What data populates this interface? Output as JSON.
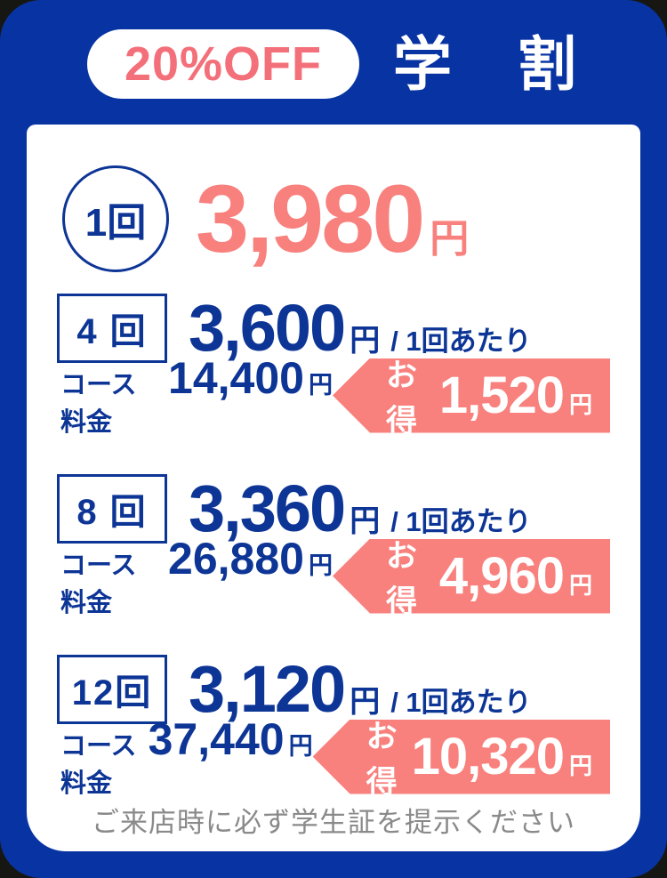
{
  "header": {
    "discount_badge": "20%OFF",
    "title": "学　割"
  },
  "single": {
    "count_label": "1回",
    "price": "3,980",
    "unit": "円"
  },
  "plans": [
    {
      "count_label": "4 回",
      "price": "3,600",
      "unit": "円",
      "per_label": "/ 1回あたり",
      "course_label": "コース料金",
      "course_price": "14,400",
      "course_unit": "円",
      "deal_label": "お得",
      "deal_price": "1,520",
      "deal_unit": "円"
    },
    {
      "count_label": "8 回",
      "price": "3,360",
      "unit": "円",
      "per_label": "/ 1回あたり",
      "course_label": "コース料金",
      "course_price": "26,880",
      "course_unit": "円",
      "deal_label": "お得",
      "deal_price": "4,960",
      "deal_unit": "円"
    },
    {
      "count_label": "12回",
      "price": "3,120",
      "unit": "円",
      "per_label": "/ 1回あたり",
      "course_label": "コース料金",
      "course_price": "37,440",
      "course_unit": "円",
      "deal_label": "お得",
      "deal_price": "10,320",
      "deal_unit": "円"
    }
  ],
  "footer": {
    "note": "ご来店時に必ず学生証を提示ください"
  },
  "colors": {
    "panel_blue": "#0834A3",
    "text_navy": "#0D3596",
    "price_pink": "#F8817E",
    "badge_text_pink": "#F3707A",
    "footer_gray": "#8A8A8A",
    "dot_gray": "#A8A8A8"
  }
}
